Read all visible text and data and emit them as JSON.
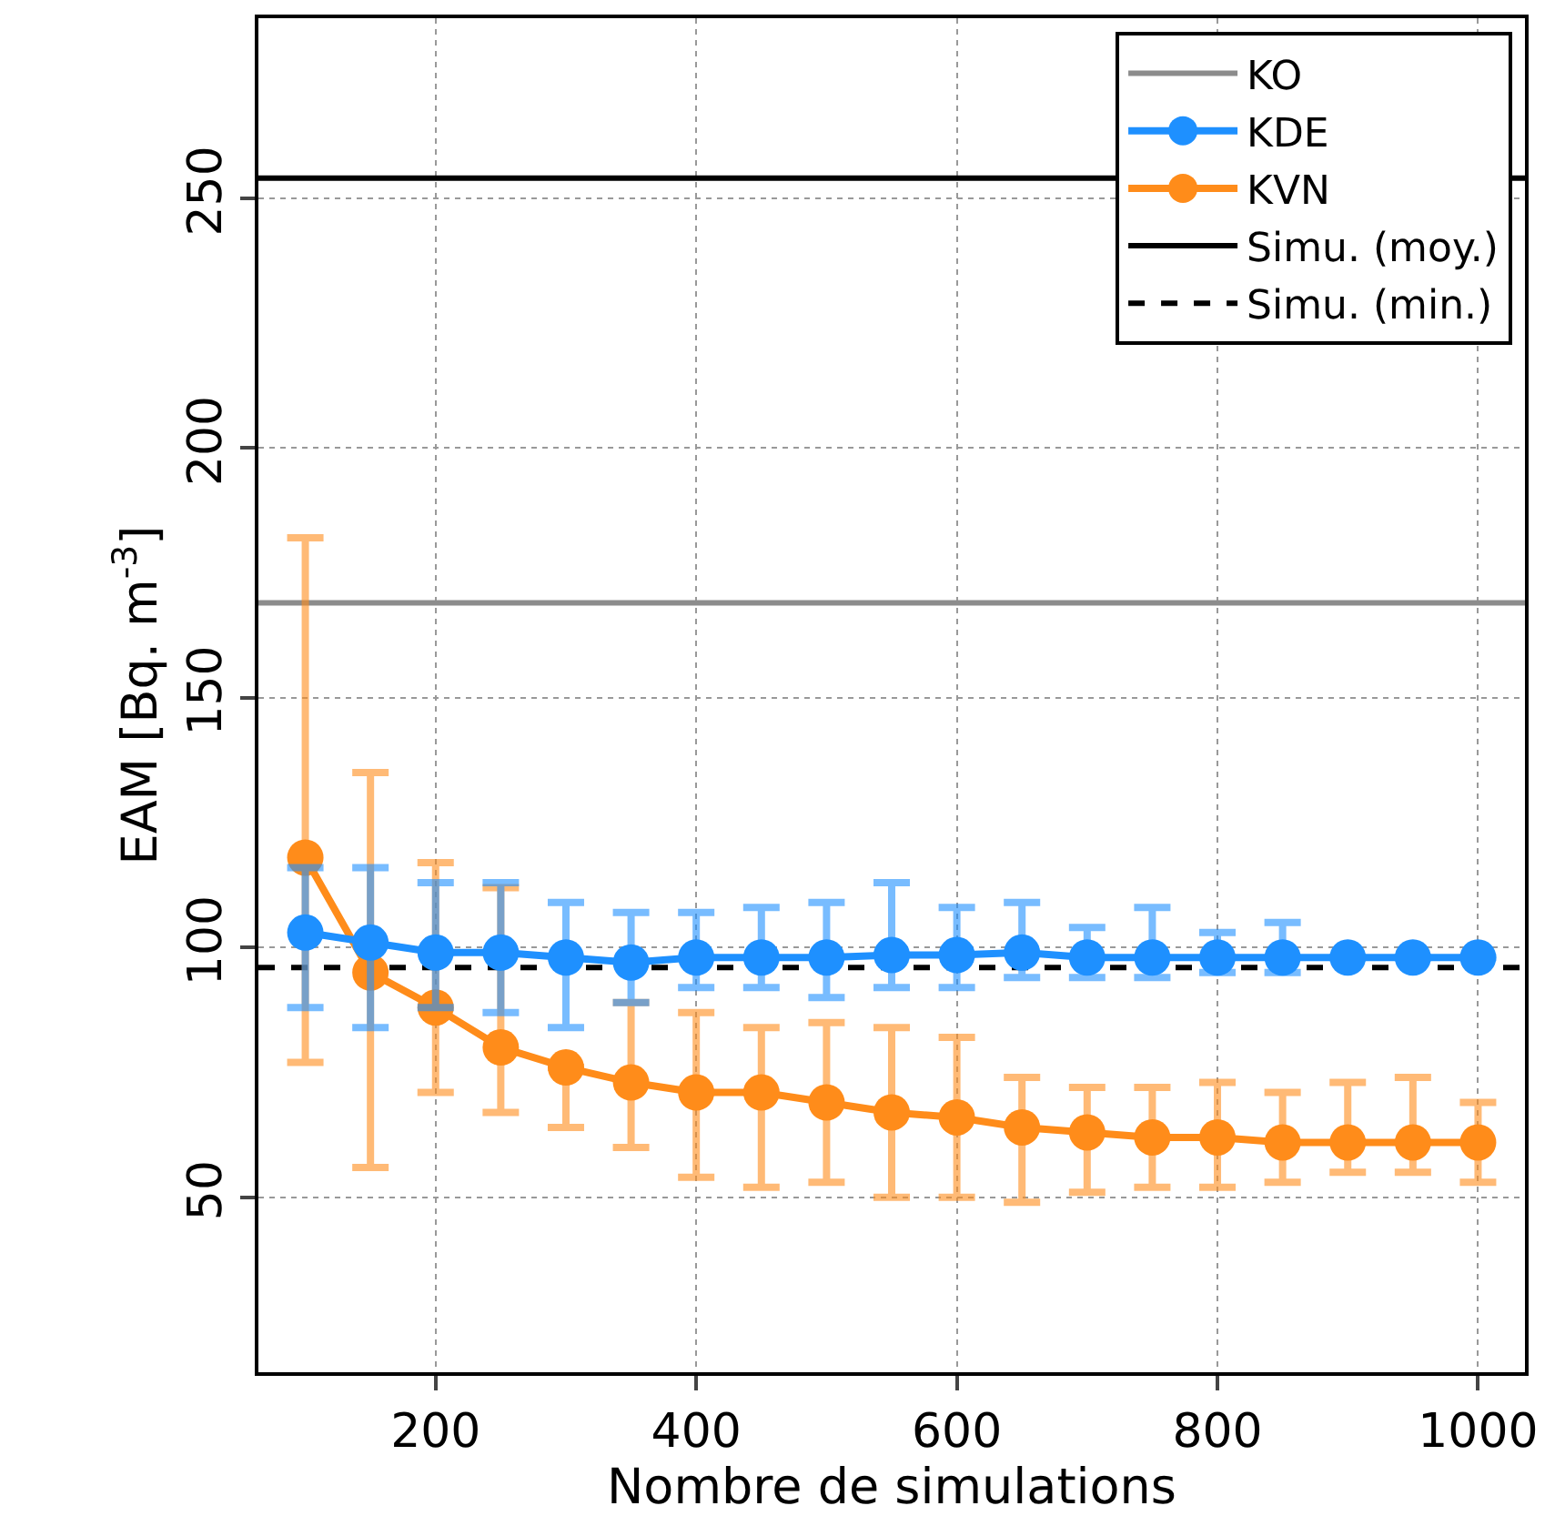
{
  "chart_data": {
    "type": "line",
    "xlabel": "Nombre de simulations",
    "ylabel": "EAM [Bq. m$^{-3}$]",
    "x": [
      100,
      150,
      200,
      250,
      300,
      350,
      400,
      450,
      500,
      550,
      600,
      650,
      700,
      750,
      800,
      850,
      900,
      950,
      1000
    ],
    "series": [
      {
        "name": "KDE",
        "color": "#1e90ff",
        "values": [
          103,
          101,
          99,
          99,
          98,
          97,
          98,
          98,
          98,
          98.5,
          98.5,
          99,
          98,
          98,
          98,
          98,
          98,
          98,
          98
        ],
        "errors": [
          [
            88,
            116
          ],
          [
            84,
            116
          ],
          [
            88,
            113
          ],
          [
            87,
            113
          ],
          [
            84,
            109
          ],
          [
            89,
            107
          ],
          [
            92,
            107
          ],
          [
            92,
            108
          ],
          [
            90,
            109
          ],
          [
            92,
            113
          ],
          [
            92,
            108
          ],
          [
            94,
            109
          ],
          [
            94,
            104
          ],
          [
            94,
            108
          ],
          [
            95,
            103
          ],
          [
            95,
            105
          ],
          null,
          null,
          null
        ]
      },
      {
        "name": "KVN",
        "color": "#ff8c1a",
        "values": [
          118,
          95,
          88,
          80,
          76,
          73,
          71,
          71,
          69,
          67,
          66,
          64,
          63,
          62,
          62,
          61,
          61,
          61,
          61
        ],
        "errors": [
          [
            77,
            182
          ],
          [
            56,
            135
          ],
          [
            71,
            117
          ],
          [
            67,
            112
          ],
          [
            64,
            76
          ],
          [
            60,
            89
          ],
          [
            54,
            87
          ],
          [
            52,
            84
          ],
          [
            53,
            85
          ],
          [
            50,
            84
          ],
          [
            50,
            82
          ],
          [
            49,
            74
          ],
          [
            51,
            72
          ],
          [
            52,
            72
          ],
          [
            52,
            73
          ],
          [
            53,
            71
          ],
          [
            55,
            73
          ],
          [
            55,
            74
          ],
          [
            53,
            69
          ]
        ]
      }
    ],
    "ref_lines": [
      {
        "axis": "y",
        "value": 169,
        "label": "KO",
        "color": "#8c8c8c",
        "line_style": "solid"
      },
      {
        "axis": "y",
        "value": 254,
        "label": "Simu. (moy.)",
        "color": "#000000",
        "line_style": "solid"
      },
      {
        "axis": "y",
        "value": 96,
        "label": "Simu. (min.)",
        "color": "#000000",
        "line_style": "dashed"
      }
    ],
    "xlim": [
      64,
      1036
    ],
    "xticks": [
      200,
      400,
      600,
      800,
      1000
    ],
    "ylim": [
      15,
      286
    ],
    "yticks": [
      50,
      100,
      150,
      200,
      250
    ],
    "grid": true,
    "legend": "top right",
    "marker": "circle",
    "line_style": "solid"
  }
}
